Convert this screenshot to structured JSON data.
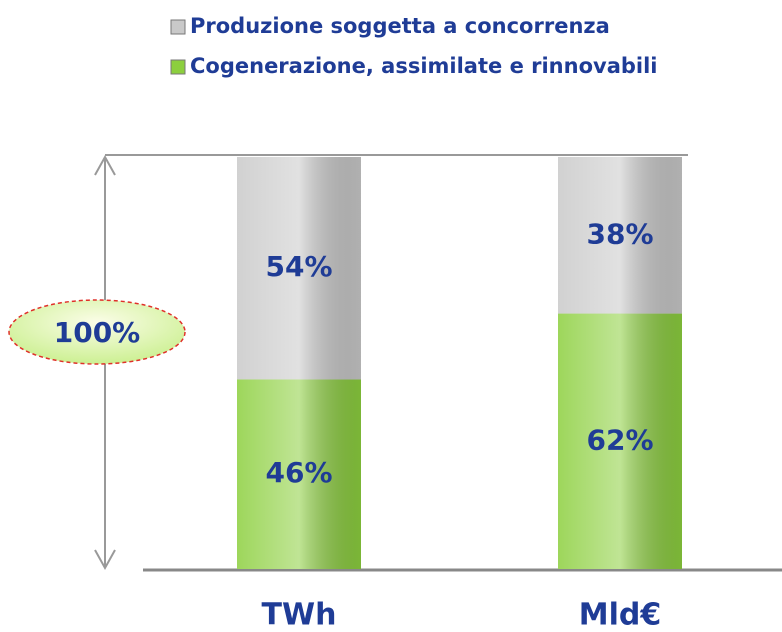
{
  "chart_data": {
    "type": "bar",
    "stacked": true,
    "categories": [
      "TWh",
      "Mld€"
    ],
    "series": [
      {
        "name": "Cogenerazione, assimilate e rinnovabili",
        "color": "#8ccf3e",
        "values": [
          46,
          62
        ],
        "value_labels": [
          "46%",
          "62%"
        ]
      },
      {
        "name": "Produzione soggetta a concorrenza",
        "color": "#c9c9c9",
        "values": [
          54,
          38
        ],
        "value_labels": [
          "54%",
          "38%"
        ]
      }
    ],
    "ylim": [
      0,
      100
    ],
    "annotation": "100%",
    "legend": "top"
  }
}
